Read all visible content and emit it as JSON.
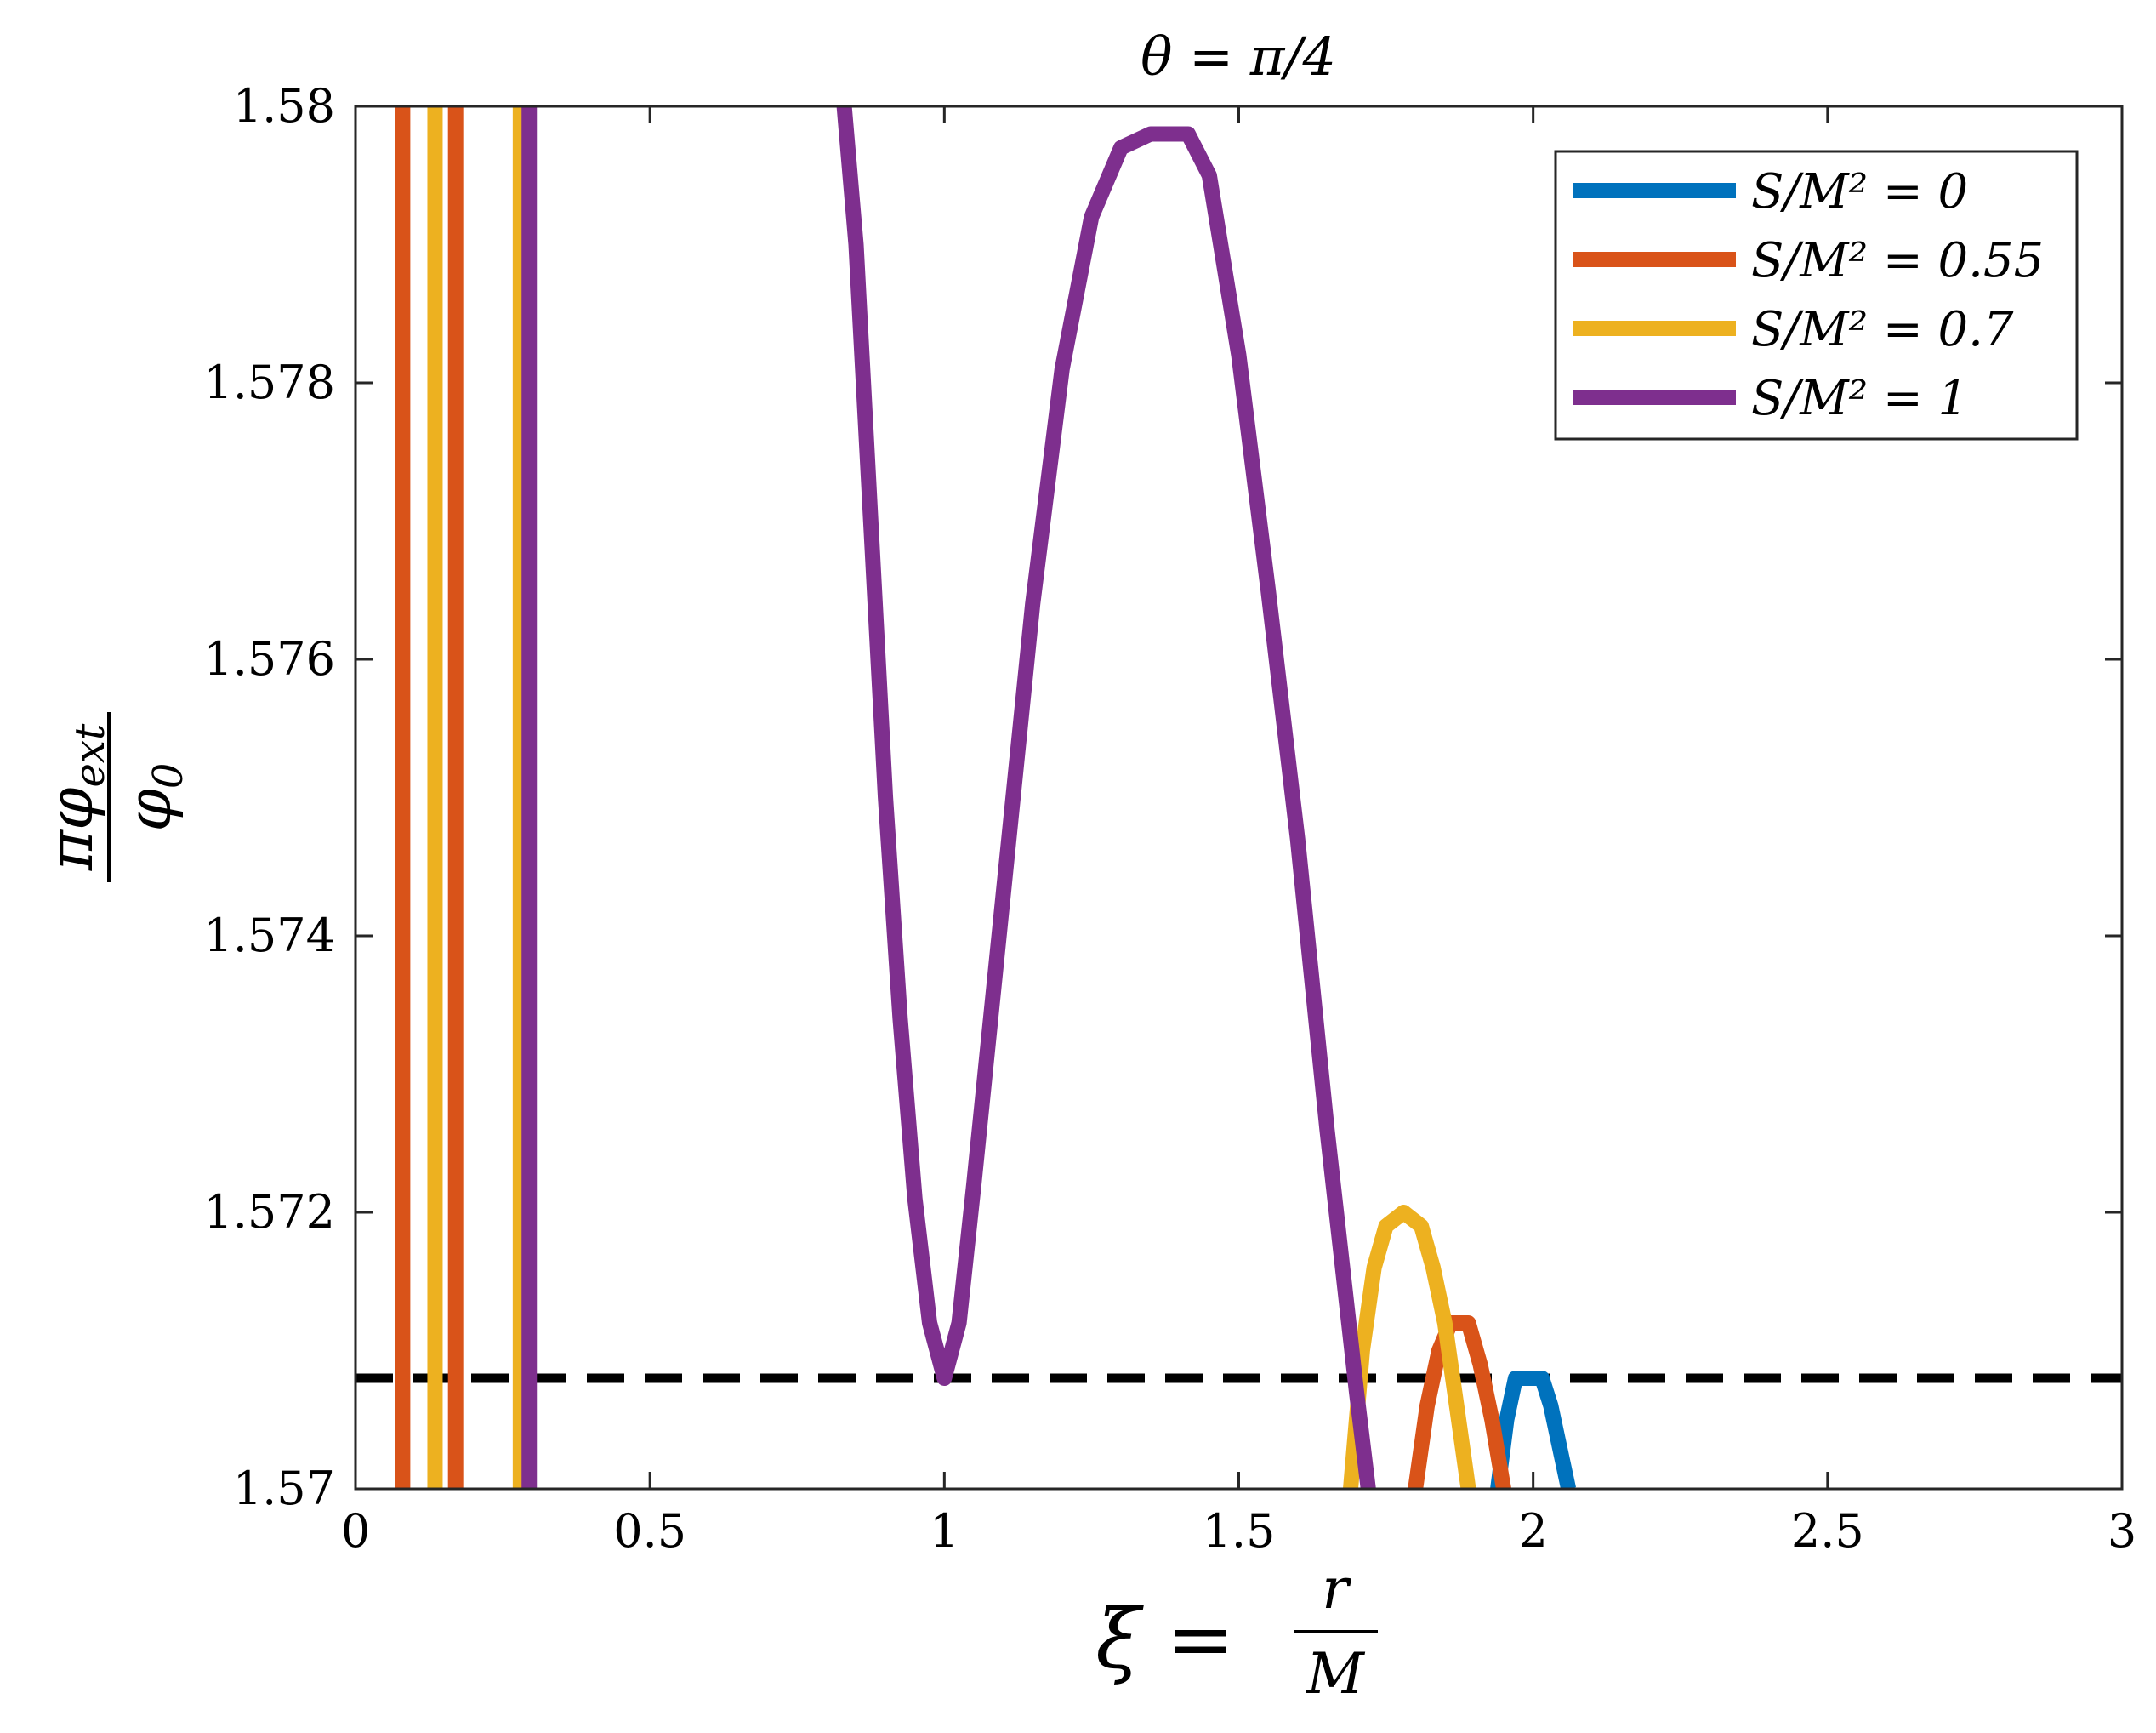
{
  "chart_data": {
    "type": "line",
    "title": "θ = π/4",
    "xlabel_parts": {
      "lhs": "ξ =",
      "num": "r",
      "den": "M"
    },
    "ylabel_parts": {
      "num": "πφ",
      "num_sub": "ext",
      "den": "φ",
      "den_sub": "0"
    },
    "xlim": [
      0,
      3
    ],
    "ylim": [
      1.57,
      1.58
    ],
    "xticks": [
      "0",
      "0.5",
      "1",
      "1.5",
      "2",
      "2.5",
      "3"
    ],
    "yticks": [
      "1.57",
      "1.572",
      "1.574",
      "1.576",
      "1.578",
      "1.58"
    ],
    "xtick_values": [
      0,
      0.5,
      1,
      1.5,
      2,
      2.5,
      3
    ],
    "ytick_values": [
      1.57,
      1.572,
      1.574,
      1.576,
      1.578,
      1.58
    ],
    "legend_position": "top-right",
    "reference_line": {
      "y": 1.5708,
      "style": "dashed",
      "color": "#000000"
    },
    "series": [
      {
        "name": "S/M² = 0",
        "legend_label": "S/M² = 0",
        "color": "#0072BD",
        "x": [
          1.94,
          1.955,
          1.97,
          1.985,
          2.0,
          2.015,
          2.03,
          2.045,
          2.06
        ],
        "y": [
          1.57,
          1.5705,
          1.5708,
          1.5708,
          1.5708,
          1.5708,
          1.5706,
          1.5703,
          1.57
        ]
      },
      {
        "name": "S/M² = 0.55",
        "legend_label": "S/M² = 0.55",
        "color": "#D95319",
        "x": [
          1.8,
          1.82,
          1.84,
          1.86,
          1.875,
          1.89,
          1.91,
          1.93,
          1.95
        ],
        "y": [
          1.57,
          1.5706,
          1.571,
          1.5712,
          1.5712,
          1.5712,
          1.5709,
          1.5705,
          1.57
        ],
        "vertical_segments_x": [
          0.08,
          0.17
        ]
      },
      {
        "name": "S/M² = 0.7",
        "legend_label": "S/M² = 0.7",
        "color": "#EDB120",
        "x": [
          1.69,
          1.71,
          1.73,
          1.75,
          1.78,
          1.81,
          1.83,
          1.85,
          1.87,
          1.89
        ],
        "y": [
          1.57,
          1.571,
          1.5716,
          1.5719,
          1.572,
          1.5719,
          1.5716,
          1.5712,
          1.5706,
          1.57
        ],
        "vertical_segments_x": [
          0.135,
          0.28
        ]
      },
      {
        "name": "S/M² = 1",
        "legend_label": "S/M² = 1",
        "color": "#7E2F8E",
        "x": [
          0.83,
          0.85,
          0.875,
          0.9,
          0.925,
          0.95,
          0.975,
          1.0,
          1.025,
          1.05,
          1.1,
          1.15,
          1.2,
          1.25,
          1.3,
          1.35,
          1.4,
          1.414,
          1.45,
          1.5,
          1.55,
          1.6,
          1.65,
          1.7,
          1.72
        ],
        "y": [
          1.58,
          1.579,
          1.577,
          1.575,
          1.5734,
          1.5721,
          1.5712,
          1.5708,
          1.5712,
          1.5722,
          1.5743,
          1.5764,
          1.5781,
          1.5792,
          1.5797,
          1.5798,
          1.5798,
          1.5798,
          1.5795,
          1.5782,
          1.5765,
          1.5747,
          1.5726,
          1.5707,
          1.57
        ],
        "vertical_segments_x": [
          0.295
        ]
      }
    ]
  }
}
